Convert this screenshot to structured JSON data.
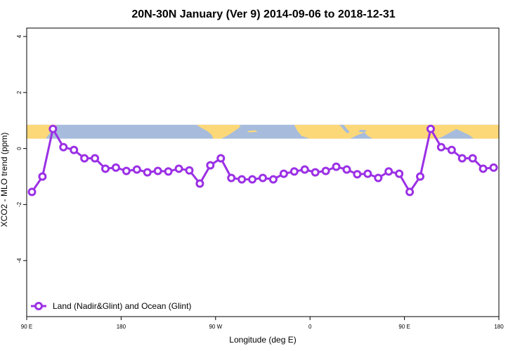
{
  "chart_data": {
    "type": "line",
    "title": "20N-30N January (Ver 9)   2014-09-06 to 2018-12-31",
    "xlabel": "Longitude (deg E)",
    "ylabel": "XCO2 - MLO trend (ppm)",
    "x_ticks": [
      {
        "value": 90,
        "label": "90 E"
      },
      {
        "value": 180,
        "label": "180"
      },
      {
        "value": 270,
        "label": "90 W"
      },
      {
        "value": 360,
        "label": "0"
      },
      {
        "value": 450,
        "label": "90 E"
      },
      {
        "value": 540,
        "label": "180"
      }
    ],
    "y_ticks": [
      -4,
      -2,
      0,
      2,
      4
    ],
    "xlim": [
      90,
      540
    ],
    "ylim": [
      -6,
      4.3
    ],
    "grid": false,
    "legend": {
      "position": "bottom-left",
      "label": "Land (Nadir&Glint) and Ocean (Glint)"
    },
    "map_band": {
      "ymin": 0.35,
      "ymax": 0.85,
      "ocean_color": "#a7bcdc",
      "land_color": "#fdd878"
    },
    "series": [
      {
        "name": "Land (Nadir&Glint) and Ocean (Glint)",
        "color": "#9b30e5",
        "x": [
          95,
          105,
          115,
          125,
          135,
          145,
          155,
          165,
          175,
          185,
          195,
          205,
          215,
          225,
          235,
          245,
          255,
          265,
          275,
          285,
          295,
          305,
          315,
          325,
          335,
          345,
          355,
          365,
          375,
          385,
          395,
          405,
          415,
          425,
          435,
          445,
          455,
          465,
          475,
          485,
          495,
          505,
          515,
          525,
          535
        ],
        "y": [
          -1.55,
          -1.0,
          0.7,
          0.05,
          -0.05,
          -0.35,
          -0.35,
          -0.72,
          -0.68,
          -0.8,
          -0.75,
          -0.85,
          -0.8,
          -0.82,
          -0.72,
          -0.78,
          -1.25,
          -0.6,
          -0.35,
          -1.05,
          -1.1,
          -1.1,
          -1.05,
          -1.1,
          -0.9,
          -0.82,
          -0.75,
          -0.85,
          -0.8,
          -0.65,
          -0.75,
          -0.92,
          -0.9,
          -1.05,
          -0.82,
          -0.9,
          -1.55,
          -1.0,
          0.7,
          0.05,
          -0.05,
          -0.35,
          -0.35,
          -0.72,
          -0.68
        ]
      }
    ]
  }
}
